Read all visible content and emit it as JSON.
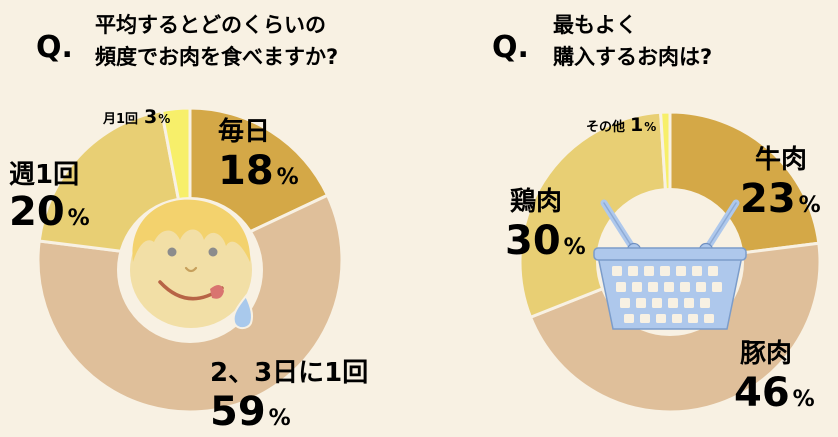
{
  "chart_data": [
    {
      "type": "pie",
      "question_mark": "Q.",
      "title_lines": [
        "平均するとどのくらいの",
        "頻度でお肉を食べますか?"
      ],
      "unit": "%",
      "slices": [
        {
          "label": "毎日",
          "value": 18,
          "color": "#d4a847"
        },
        {
          "label": "2、3日に1回",
          "value": 59,
          "color": "#dfbf9a"
        },
        {
          "label": "週1回",
          "value": 20,
          "color": "#e8cf74"
        },
        {
          "label": "月1回",
          "value": 3,
          "color": "#f7ef6a"
        }
      ],
      "center_icon": "licking-lips-face-icon"
    },
    {
      "type": "pie",
      "question_mark": "Q.",
      "title_lines": [
        "最もよく",
        "購入するお肉は?"
      ],
      "unit": "%",
      "slices": [
        {
          "label": "牛肉",
          "value": 23,
          "color": "#d4a847"
        },
        {
          "label": "豚肉",
          "value": 46,
          "color": "#dfbf9a"
        },
        {
          "label": "鶏肉",
          "value": 30,
          "color": "#e8cf74"
        },
        {
          "label": "その他",
          "value": 1,
          "color": "#f7ef6a"
        }
      ],
      "center_icon": "shopping-basket-icon"
    }
  ]
}
